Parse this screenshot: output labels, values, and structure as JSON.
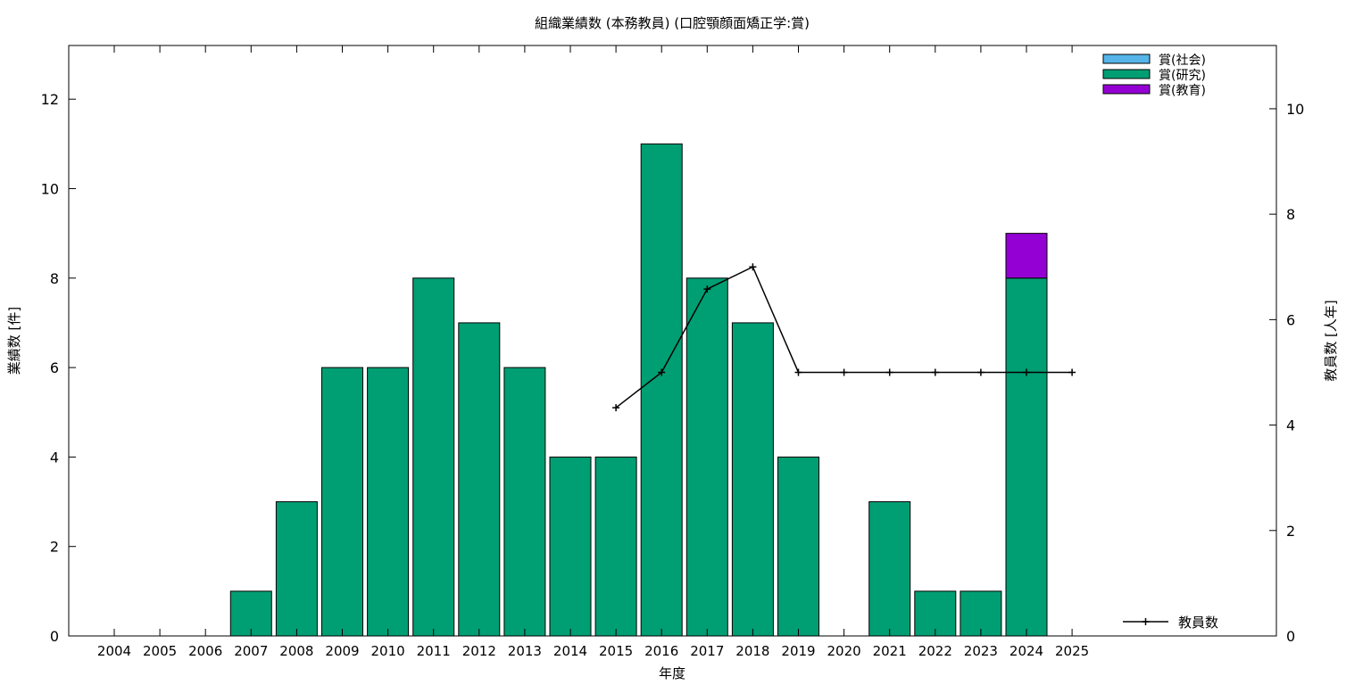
{
  "chart_data": {
    "type": "bar",
    "title": "組織業績数 (本務教員) (口腔顎顔面矯正学:賞)",
    "xlabel": "年度",
    "ylabel": "業績数 [件]",
    "y2label": "教員数 [人年]",
    "categories": [
      "2004",
      "2005",
      "2006",
      "2007",
      "2008",
      "2009",
      "2010",
      "2011",
      "2012",
      "2013",
      "2014",
      "2015",
      "2016",
      "2017",
      "2018",
      "2019",
      "2020",
      "2021",
      "2022",
      "2023",
      "2024",
      "2025"
    ],
    "ylim": [
      0,
      13.2
    ],
    "y2lim": [
      0,
      11.2
    ],
    "yticks": [
      0,
      2,
      4,
      6,
      8,
      10,
      12
    ],
    "y2ticks": [
      0,
      2,
      4,
      6,
      8,
      10
    ],
    "stacked": true,
    "series": [
      {
        "name": "賞(社会)",
        "color": "#56b4e9",
        "values": [
          0,
          0,
          0,
          0,
          0,
          0,
          0,
          0,
          0,
          0,
          0,
          0,
          0,
          0,
          0,
          0,
          0,
          0,
          0,
          0,
          0,
          0
        ]
      },
      {
        "name": "賞(研究)",
        "color": "#009e73",
        "values": [
          0,
          0,
          0,
          1,
          3,
          6,
          6,
          8,
          7,
          6,
          4,
          4,
          11,
          8,
          7,
          4,
          0,
          3,
          1,
          1,
          8,
          0
        ]
      },
      {
        "name": "賞(教育)",
        "color": "#9400d3",
        "values": [
          0,
          0,
          0,
          0,
          0,
          0,
          0,
          0,
          0,
          0,
          0,
          0,
          0,
          0,
          0,
          0,
          0,
          0,
          0,
          0,
          1,
          0
        ]
      }
    ],
    "line_series": {
      "name": "教員数",
      "axis": "y2",
      "color": "#000000",
      "x": [
        "2015",
        "2016",
        "2017",
        "2018",
        "2019",
        "2020",
        "2021",
        "2022",
        "2023",
        "2024",
        "2025"
      ],
      "values": [
        4.33,
        5,
        6.58,
        7,
        5,
        5,
        5,
        5,
        5,
        5,
        5
      ]
    },
    "legend_position": "top-right",
    "line_legend_position": "bottom-right",
    "grid": false
  }
}
